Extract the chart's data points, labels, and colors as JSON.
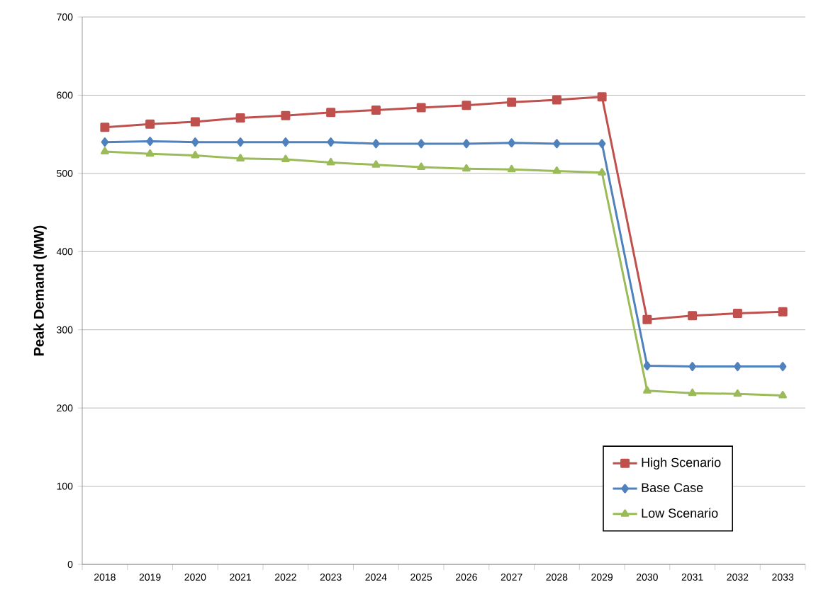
{
  "chart_data": {
    "type": "line",
    "ylabel": "Peak Demand (MW)",
    "categories": [
      "2018",
      "2019",
      "2020",
      "2021",
      "2022",
      "2023",
      "2024",
      "2025",
      "2026",
      "2027",
      "2028",
      "2029",
      "2030",
      "2031",
      "2032",
      "2033"
    ],
    "series": [
      {
        "name": "High Scenario",
        "color": "#c0504d",
        "marker": "square",
        "values": [
          559,
          563,
          566,
          571,
          574,
          578,
          581,
          584,
          587,
          591,
          594,
          598,
          313,
          318,
          321,
          323
        ]
      },
      {
        "name": "Base Case",
        "color": "#4f81bd",
        "marker": "diamond",
        "values": [
          540,
          541,
          540,
          540,
          540,
          540,
          538,
          538,
          538,
          539,
          538,
          538,
          254,
          253,
          253,
          253
        ]
      },
      {
        "name": "Low Scenario",
        "color": "#9bbb59",
        "marker": "triangle",
        "values": [
          528,
          525,
          523,
          519,
          518,
          514,
          511,
          508,
          506,
          505,
          503,
          501,
          222,
          219,
          218,
          216
        ]
      }
    ],
    "ylim": [
      0,
      700
    ],
    "yticks": [
      0,
      100,
      200,
      300,
      400,
      500,
      600,
      700
    ],
    "grid": "y",
    "legend": "bottom right",
    "line_style": "solid"
  }
}
